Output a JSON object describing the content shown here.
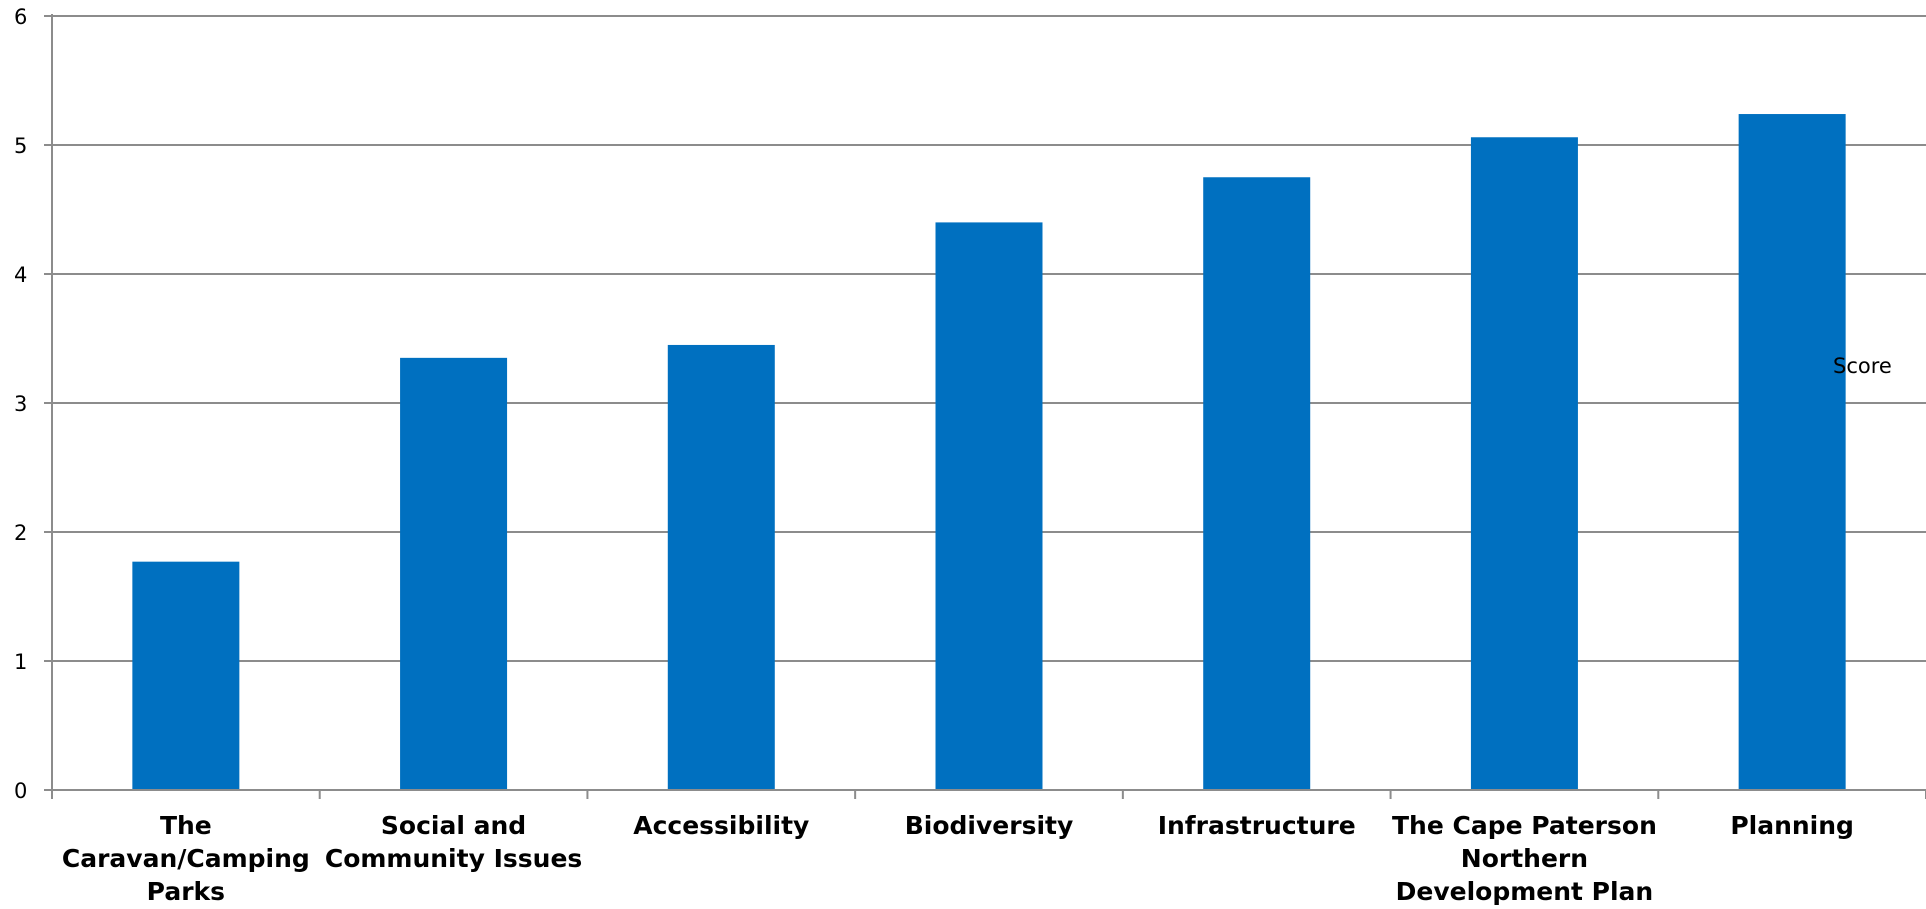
{
  "chart_data": {
    "type": "bar",
    "categories": [
      "The Caravan/Camping Parks",
      "Social and Community Issues",
      "Accessibility",
      "Biodiversity",
      "Infrastructure",
      "The Cape Paterson Northern Development Plan",
      "Planning"
    ],
    "category_lines": [
      [
        "The",
        "Caravan/Camping",
        "Parks"
      ],
      [
        "Social and",
        "Community Issues"
      ],
      [
        "Accessibility"
      ],
      [
        "Biodiversity"
      ],
      [
        "Infrastructure"
      ],
      [
        "The Cape Paterson",
        "Northern",
        "Development Plan"
      ],
      [
        "Planning"
      ]
    ],
    "series": [
      {
        "name": "Score",
        "values": [
          1.77,
          3.35,
          3.45,
          4.4,
          4.75,
          5.06,
          5.24
        ],
        "color": "#0070c0"
      }
    ],
    "ylim": [
      0,
      6
    ],
    "yticks": [
      0,
      1,
      2,
      3,
      4,
      5,
      6
    ],
    "grid": true,
    "legend_position": "right",
    "title": "",
    "xlabel": "",
    "ylabel": ""
  }
}
